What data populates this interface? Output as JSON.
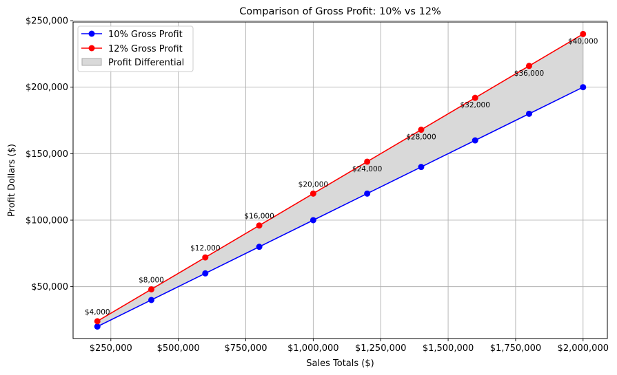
{
  "chart_data": {
    "type": "line",
    "title": "Comparison of Gross Profit: 10% vs 12%",
    "xlabel": "Sales Totals ($)",
    "ylabel": "Profit Dollars ($)",
    "x": [
      200000,
      400000,
      600000,
      800000,
      1000000,
      1200000,
      1400000,
      1600000,
      1800000,
      2000000
    ],
    "series": [
      {
        "name": "10% Gross Profit",
        "color": "#0000ff",
        "marker": "circle",
        "values": [
          20000,
          40000,
          60000,
          80000,
          100000,
          120000,
          140000,
          160000,
          180000,
          200000
        ]
      },
      {
        "name": "12% Gross Profit",
        "color": "#ff0000",
        "marker": "circle",
        "values": [
          24000,
          48000,
          72000,
          96000,
          120000,
          144000,
          168000,
          192000,
          216000,
          240000
        ]
      }
    ],
    "fill_between": {
      "name": "Profit Differential",
      "color": "#d9d9d9",
      "edge": "#aaaaaa"
    },
    "annotations": [
      "$4,000",
      "$8,000",
      "$12,000",
      "$16,000",
      "$20,000",
      "$24,000",
      "$28,000",
      "$32,000",
      "$36,000",
      "$40,000"
    ],
    "x_ticks": [
      250000,
      500000,
      750000,
      1000000,
      1250000,
      1500000,
      1750000,
      2000000
    ],
    "x_tick_labels": [
      "$250,000",
      "$500,000",
      "$750,000",
      "$1,000,000",
      "$1,250,000",
      "$1,500,000",
      "$1,750,000",
      "$2,000,000"
    ],
    "y_ticks": [
      50000,
      100000,
      150000,
      200000,
      250000
    ],
    "y_tick_labels": [
      "$50,000",
      "$100,000",
      "$150,000",
      "$200,000",
      "$250,000"
    ],
    "xlim": [
      110000,
      2090000
    ],
    "ylim": [
      11000,
      249000
    ],
    "grid": true,
    "legend": "top-left"
  }
}
